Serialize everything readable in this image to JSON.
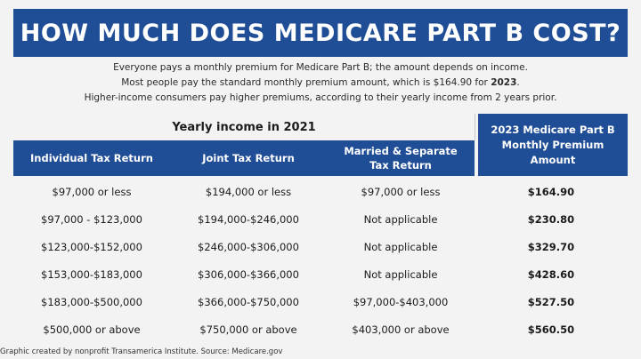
{
  "title": "HOW MUCH DOES MEDICARE PART B COST?",
  "intro": {
    "line1": "Everyone pays a monthly premium for Medicare Part B; the amount depends on income.",
    "line2_prefix": "Most people pay the standard monthly premium amount, which is $164.90 for ",
    "line2_year": "2023",
    "line2_suffix": ".",
    "line3": "Higher-income consumers pay higher premiums, according to their yearly income from 2 years prior."
  },
  "table": {
    "group_header": "Yearly income in 2021",
    "columns": [
      "Individual Tax Return",
      "Joint Tax Return",
      "Married & Separate Tax Return"
    ],
    "premium_header": "2023 Medicare Part B Monthly Premium Amount",
    "rows": [
      {
        "individual": "$97,000  or less",
        "joint": "$194,000 or less",
        "separate": "$97,000 or less",
        "premium": "$164.90"
      },
      {
        "individual": "$97,000 - $123,000",
        "joint": "$194,000-$246,000",
        "separate": "Not applicable",
        "premium": "$230.80"
      },
      {
        "individual": "$123,000-$152,000",
        "joint": "$246,000-$306,000",
        "separate": "Not applicable",
        "premium": "$329.70"
      },
      {
        "individual": "$153,000-$183,000",
        "joint": "$306,000-$366,000",
        "separate": "Not applicable",
        "premium": "$428.60"
      },
      {
        "individual": "$183,000-$500,000",
        "joint": "$366,000-$750,000",
        "separate": "$97,000-$403,000",
        "premium": "$527.50"
      },
      {
        "individual": "$500,000 or above",
        "joint": "$750,000 or above",
        "separate": "$403,000 or above",
        "premium": "$560.50"
      }
    ]
  },
  "footer": "Graphic created by nonprofit Transamerica Institute. Source: Medicare.gov",
  "colors": {
    "accent": "#1f4e96",
    "background": "#f3f3f3"
  }
}
